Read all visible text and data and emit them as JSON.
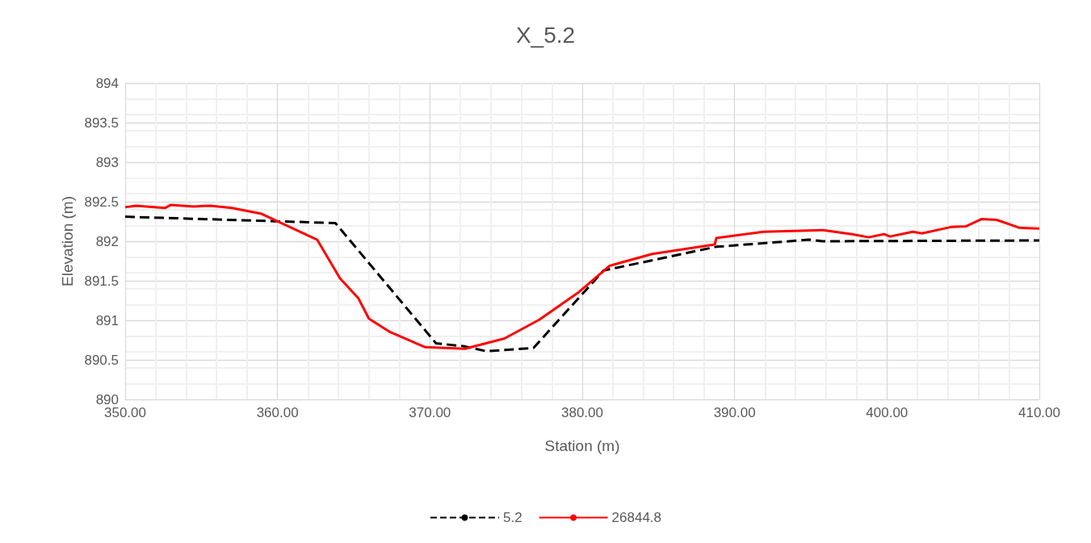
{
  "chart_data": {
    "type": "line",
    "title": "X_5.2",
    "xlabel": "Station (m)",
    "ylabel": "Elevation (m)",
    "xlim": [
      350,
      410
    ],
    "xticks": [
      {
        "value": 350,
        "label": "350.00"
      },
      {
        "value": 360,
        "label": "360.00"
      },
      {
        "value": 370,
        "label": "370.00"
      },
      {
        "value": 380,
        "label": "380.00"
      },
      {
        "value": 390,
        "label": "390.00"
      },
      {
        "value": 400,
        "label": "400.00"
      },
      {
        "value": 410,
        "label": "410.00"
      }
    ],
    "ylim": [
      890,
      894
    ],
    "yticks": [
      890,
      890.5,
      891,
      891.5,
      892,
      892.5,
      893,
      893.5,
      894
    ],
    "grid": true,
    "legend": "bottom",
    "marker": "none",
    "series": [
      {
        "name": "5.2",
        "color": "#000000",
        "line_style": "dashed",
        "x": [
          350,
          363.8,
          370.4,
          372.3,
          373.7,
          376.8,
          381.4,
          388.8,
          394.9,
          395.8,
          410
        ],
        "values": [
          892.31,
          892.23,
          890.71,
          890.67,
          890.61,
          890.65,
          891.63,
          891.93,
          892.02,
          892.0,
          892.01
        ]
      },
      {
        "name": "26844.8",
        "color": "#ff0000",
        "line_style": "solid",
        "x": [
          350,
          350.7,
          352.6,
          353.0,
          354.5,
          355.6,
          357.0,
          358.9,
          362.6,
          364.1,
          365.3,
          366.0,
          367.4,
          369.7,
          372.3,
          374.9,
          377.2,
          379.8,
          381.8,
          384.6,
          388.7,
          388.8,
          391.9,
          395.8,
          397.7,
          398.8,
          399.8,
          400.2,
          401.7,
          402.3,
          404.2,
          405.2,
          406.2,
          407.2,
          408.7,
          410
        ],
        "values": [
          892.43,
          892.45,
          892.42,
          892.46,
          892.44,
          892.45,
          892.42,
          892.35,
          892.02,
          891.53,
          891.28,
          891.02,
          890.85,
          890.66,
          890.64,
          890.77,
          891.01,
          891.36,
          891.69,
          891.84,
          891.96,
          892.04,
          892.12,
          892.14,
          892.09,
          892.05,
          892.09,
          892.06,
          892.12,
          892.1,
          892.18,
          892.19,
          892.28,
          892.27,
          892.17,
          892.16
        ]
      }
    ]
  }
}
